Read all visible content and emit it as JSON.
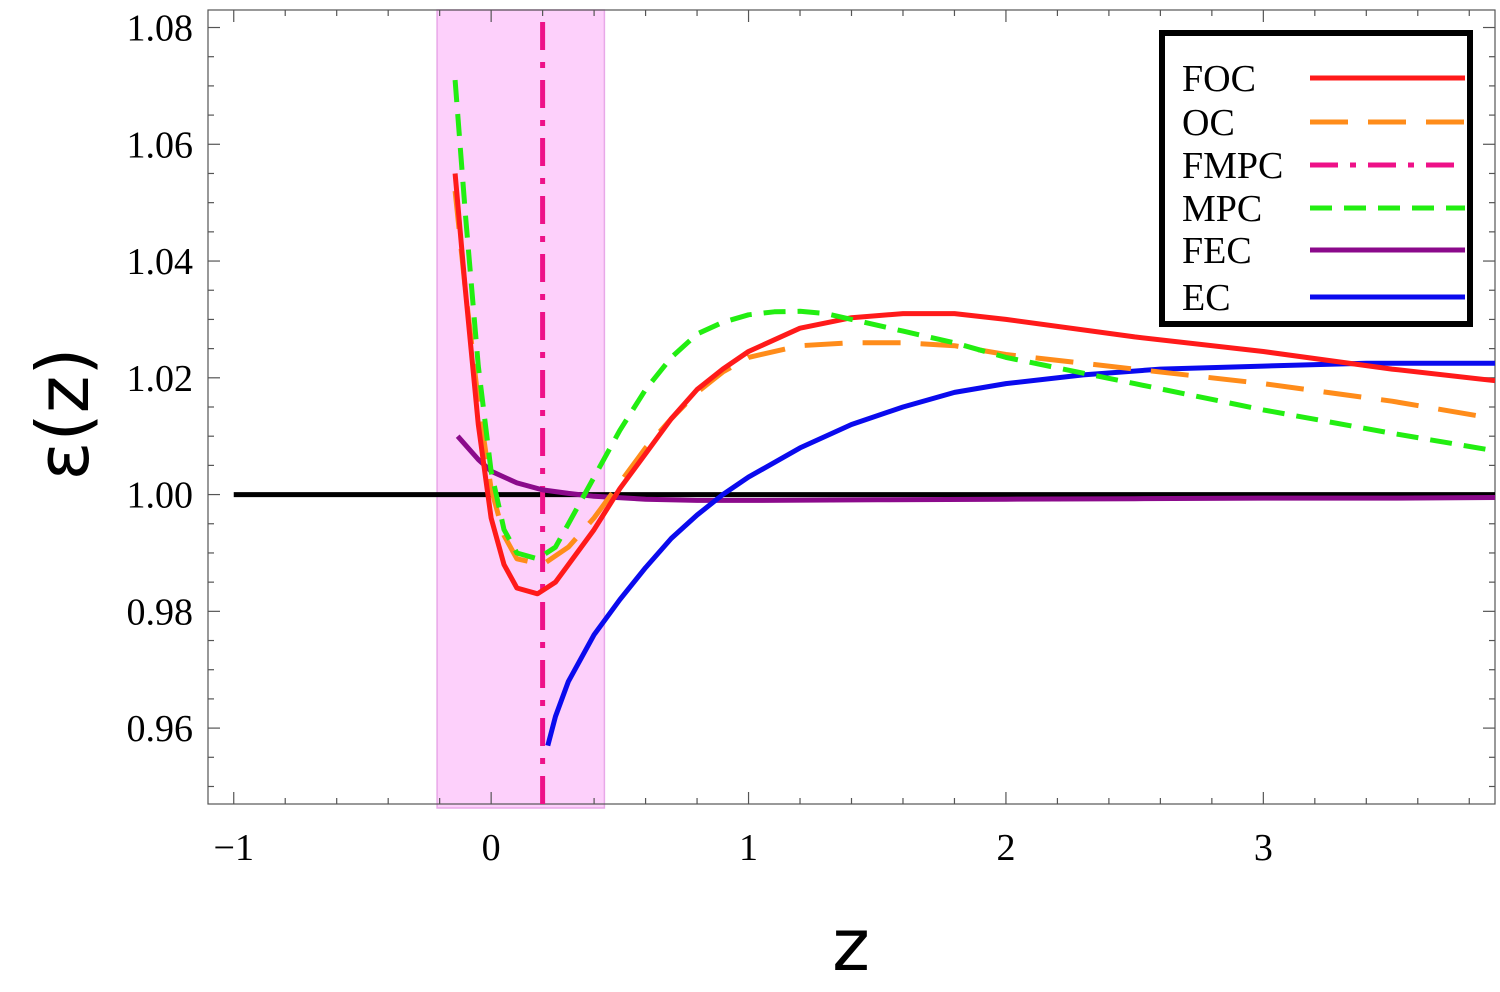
{
  "chart_data": {
    "type": "line",
    "xlabel": "z",
    "ylabel": "ε(z)",
    "xlim": [
      -1.1,
      3.9
    ],
    "ylim": [
      0.947,
      1.083
    ],
    "x_ticks": [
      {
        "value": -1,
        "label": "−1"
      },
      {
        "value": 0,
        "label": "0"
      },
      {
        "value": 1,
        "label": "1"
      },
      {
        "value": 2,
        "label": "2"
      },
      {
        "value": 3,
        "label": "3"
      }
    ],
    "y_ticks": [
      {
        "value": 0.96,
        "label": "0.96"
      },
      {
        "value": 0.98,
        "label": "0.98"
      },
      {
        "value": 1.0,
        "label": "1.00"
      },
      {
        "value": 1.02,
        "label": "1.02"
      },
      {
        "value": 1.04,
        "label": "1.04"
      },
      {
        "value": 1.06,
        "label": "1.06"
      },
      {
        "value": 1.08,
        "label": "1.08"
      }
    ],
    "band": {
      "x_range": [
        -0.21,
        0.44
      ],
      "color": "#fdd0fb"
    },
    "reference_line": {
      "y": 1.0,
      "x_range": [
        -1.0,
        3.9
      ],
      "color": "#000000"
    },
    "vertical_line": {
      "x": 0.2,
      "color": "#ee1188",
      "dash": "dashdot"
    },
    "legend_position": "top-right",
    "series": [
      {
        "name": "FOC",
        "color": "#ff1a1a",
        "dash": "solid",
        "x": [
          -0.14,
          -0.1,
          -0.05,
          0.0,
          0.05,
          0.1,
          0.18,
          0.25,
          0.3,
          0.4,
          0.5,
          0.6,
          0.7,
          0.8,
          0.9,
          1.0,
          1.2,
          1.4,
          1.6,
          1.8,
          2.0,
          2.5,
          3.0,
          3.5,
          3.9
        ],
        "y": [
          1.055,
          1.035,
          1.012,
          0.996,
          0.988,
          0.984,
          0.983,
          0.985,
          0.988,
          0.994,
          1.001,
          1.007,
          1.013,
          1.018,
          1.0215,
          1.0245,
          1.0285,
          1.0303,
          1.031,
          1.031,
          1.03,
          1.027,
          1.0245,
          1.0215,
          1.0195
        ]
      },
      {
        "name": "OC",
        "color": "#ff8c1a",
        "dash": "longdash",
        "x": [
          -0.14,
          -0.1,
          -0.05,
          0.0,
          0.05,
          0.1,
          0.2,
          0.3,
          0.4,
          0.5,
          0.6,
          0.7,
          0.8,
          0.9,
          1.0,
          1.2,
          1.4,
          1.6,
          1.8,
          2.0,
          2.5,
          3.0,
          3.5,
          3.9
        ],
        "y": [
          1.052,
          1.035,
          1.016,
          1.001,
          0.993,
          0.989,
          0.988,
          0.991,
          0.996,
          1.002,
          1.008,
          1.013,
          1.0175,
          1.021,
          1.0235,
          1.0255,
          1.026,
          1.026,
          1.0255,
          1.024,
          1.0215,
          1.019,
          1.016,
          1.013
        ]
      },
      {
        "name": "FMPC",
        "color": "#ee1188",
        "dash": "dashdot",
        "x": [
          0.2,
          0.2
        ],
        "y": [
          0.947,
          1.083
        ]
      },
      {
        "name": "MPC",
        "color": "#22ee11",
        "dash": "dashed",
        "x": [
          -0.14,
          -0.1,
          -0.05,
          0.0,
          0.05,
          0.1,
          0.18,
          0.25,
          0.3,
          0.4,
          0.5,
          0.6,
          0.7,
          0.8,
          0.9,
          1.0,
          1.1,
          1.2,
          1.3,
          1.4,
          1.6,
          1.8,
          2.0,
          2.5,
          3.0,
          3.5,
          3.9
        ],
        "y": [
          1.071,
          1.048,
          1.022,
          1.004,
          0.994,
          0.99,
          0.989,
          0.991,
          0.995,
          1.003,
          1.011,
          1.018,
          1.0235,
          1.0275,
          1.0295,
          1.0308,
          1.0313,
          1.0314,
          1.031,
          1.03,
          1.028,
          1.026,
          1.0235,
          1.019,
          1.0145,
          1.0105,
          1.0075
        ]
      },
      {
        "name": "FEC",
        "color": "#8b0a8b",
        "dash": "solid",
        "x": [
          -0.13,
          -0.05,
          0.0,
          0.1,
          0.2,
          0.3,
          0.4,
          0.6,
          0.8,
          1.0,
          1.5,
          2.0,
          2.5,
          3.0,
          3.5,
          3.9
        ],
        "y": [
          1.01,
          1.006,
          1.004,
          1.002,
          1.0008,
          1.0002,
          0.9997,
          0.9992,
          0.999,
          0.999,
          0.9991,
          0.9992,
          0.9993,
          0.9994,
          0.9994,
          0.9995
        ]
      },
      {
        "name": "EC",
        "color": "#0a0aee",
        "dash": "solid",
        "x": [
          0.22,
          0.25,
          0.3,
          0.4,
          0.5,
          0.6,
          0.7,
          0.8,
          0.9,
          1.0,
          1.2,
          1.4,
          1.6,
          1.8,
          2.0,
          2.3,
          2.6,
          3.0,
          3.4,
          3.9
        ],
        "y": [
          0.957,
          0.962,
          0.968,
          0.976,
          0.982,
          0.9875,
          0.9925,
          0.9965,
          1.0,
          1.003,
          1.008,
          1.012,
          1.015,
          1.0175,
          1.019,
          1.0205,
          1.0215,
          1.022,
          1.0225,
          1.0225
        ]
      }
    ]
  }
}
